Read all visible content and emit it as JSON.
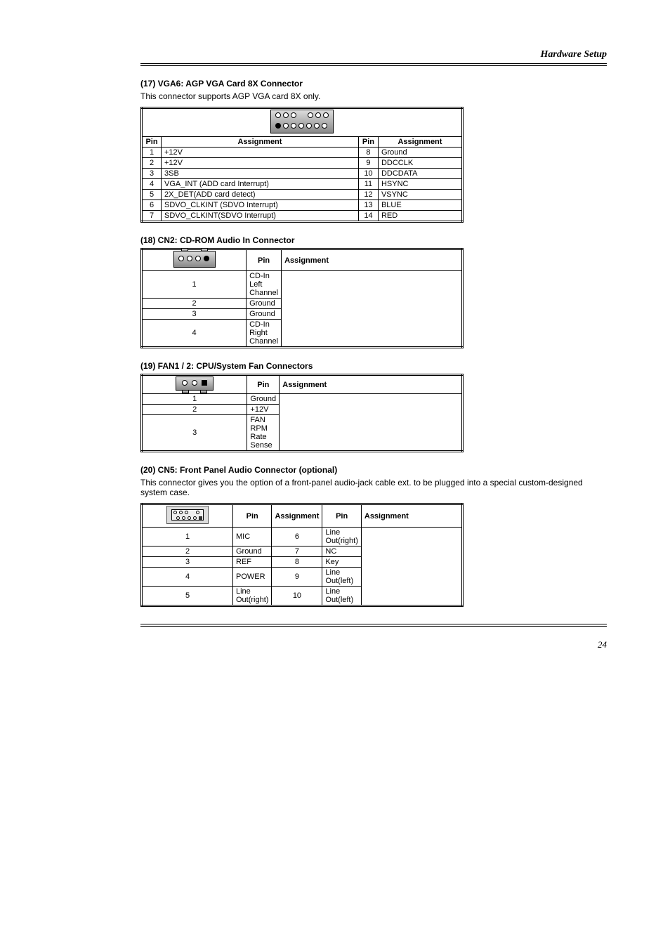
{
  "header": {
    "title": "Hardware Setup"
  },
  "vga6": {
    "label": "(17) VGA6: AGP VGA Card 8X Connector",
    "desc": "This connector supports AGP VGA card 8X only.",
    "headers": [
      "Pin",
      "Assignment",
      "Pin",
      "Assignment"
    ],
    "rows": [
      [
        "1",
        "+12V",
        "8",
        "Ground"
      ],
      [
        "2",
        "+12V",
        "9",
        "DDCCLK"
      ],
      [
        "3",
        "3SB",
        "10",
        "DDCDATA"
      ],
      [
        "4",
        "VGA_INT (ADD card Interrupt)",
        "11",
        "HSYNC"
      ],
      [
        "5",
        "2X_DET(ADD card detect)",
        "12",
        "VSYNC"
      ],
      [
        "6",
        "SDVO_CLKINT (SDVO Interrupt)",
        "13",
        "BLUE"
      ],
      [
        "7",
        "SDVO_CLKINT(SDVO Interrupt)",
        "14",
        "RED"
      ]
    ]
  },
  "cdin": {
    "label": "(18) CN2: CD-ROM Audio In Connector",
    "headers": [
      "Pin",
      "Assignment"
    ],
    "rows": [
      [
        "1",
        "CD-In Left Channel"
      ],
      [
        "2",
        "Ground"
      ],
      [
        "3",
        "Ground"
      ],
      [
        "4",
        "CD-In Right Channel"
      ]
    ]
  },
  "fan": {
    "label": "(19) FAN1 / 2: CPU/System Fan Connectors",
    "headers": [
      "Pin",
      "Assignment"
    ],
    "rows": [
      [
        "1",
        "Ground"
      ],
      [
        "2",
        "+12V"
      ],
      [
        "3",
        "FAN RPM Rate Sense"
      ]
    ]
  },
  "faudio": {
    "label": "(20) CN5: Front Panel Audio Connector (optional)",
    "desc": "This connector gives you the option of a front-panel audio-jack cable ext. to be plugged into a special custom-designed system case.",
    "headers": [
      "Pin",
      "Assignment",
      "Pin",
      "Assignment"
    ],
    "rows": [
      [
        "1",
        "MIC",
        "6",
        "Line Out(right)"
      ],
      [
        "2",
        "Ground",
        "7",
        "NC"
      ],
      [
        "3",
        "REF",
        "8",
        "Key"
      ],
      [
        "4",
        "POWER",
        "9",
        "Line Out(left)"
      ],
      [
        "5",
        "Line Out(right)",
        "10",
        "Line Out(left)"
      ]
    ]
  },
  "footer": {
    "page": "24"
  }
}
